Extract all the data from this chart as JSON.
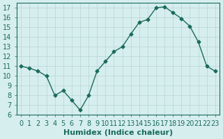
{
  "x": [
    0,
    1,
    2,
    3,
    4,
    5,
    6,
    7,
    8,
    9,
    10,
    11,
    12,
    13,
    14,
    15,
    16,
    17,
    18,
    19,
    20,
    21,
    22,
    23
  ],
  "y": [
    11,
    10.8,
    10.5,
    10,
    8,
    8.5,
    7.5,
    6.5,
    8,
    10.5,
    11.5,
    12.5,
    13,
    14.3,
    15.5,
    15.8,
    17,
    17.1,
    16.5,
    15.9,
    15.1,
    13.5,
    11,
    10.5
  ],
  "line_color": "#1a6b5a",
  "marker": "D",
  "marker_size": 2.5,
  "bg_color": "#d6eeee",
  "grid_color": "#b8d4d4",
  "xlabel": "Humidex (Indice chaleur)",
  "ylim": [
    6,
    17.5
  ],
  "xlim": [
    -0.5,
    23.5
  ],
  "yticks": [
    6,
    7,
    8,
    9,
    10,
    11,
    12,
    13,
    14,
    15,
    16,
    17
  ],
  "xticks": [
    0,
    1,
    2,
    3,
    4,
    5,
    6,
    7,
    8,
    9,
    10,
    11,
    12,
    13,
    14,
    15,
    16,
    17,
    18,
    19,
    20,
    21,
    22,
    23
  ],
  "tick_color": "#1a6b5a",
  "label_fontsize": 7,
  "xlabel_fontsize": 8
}
